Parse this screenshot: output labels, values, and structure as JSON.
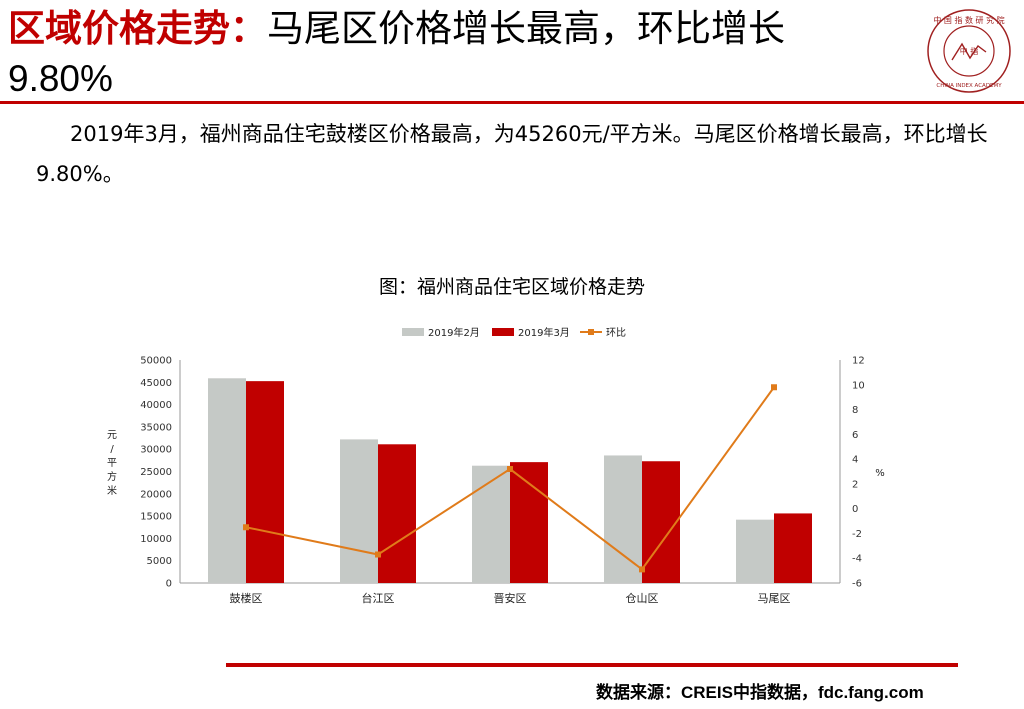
{
  "header": {
    "title_bold": "区域价格走势：",
    "title_rest": "马尾区价格增长最高，环比增长",
    "title_value": "9.80%"
  },
  "logo": {
    "icon": "china-index-academy-seal",
    "text_cn": "中 国 指 数 研 究 院",
    "text_en": "CHINA INDEX ACADEMY",
    "center": "中 指"
  },
  "summary": {
    "text": "2019年3月，福州商品住宅鼓楼区价格最高，为45260元/平方米。马尾区价格增长最高，环比增长9.80%。"
  },
  "chart_title": "图：福州商品住宅区域价格走势",
  "chart_data": {
    "type": "bar",
    "categories": [
      "鼓楼区",
      "台江区",
      "晋安区",
      "仓山区",
      "马尾区"
    ],
    "series": [
      {
        "name": "2019年2月",
        "type": "bar",
        "color": "#c5c9c6",
        "values": [
          45900,
          32200,
          26300,
          28600,
          14200
        ]
      },
      {
        "name": "2019年3月",
        "type": "bar",
        "color": "#c00000",
        "values": [
          45260,
          31100,
          27100,
          27300,
          15600
        ]
      },
      {
        "name": "环比",
        "type": "line",
        "axis": "right",
        "color": "#e07b1a",
        "values": [
          -1.5,
          -3.7,
          3.2,
          -4.9,
          9.8
        ]
      }
    ],
    "ylabel": "元/平方米",
    "ylim": [
      0,
      50000
    ],
    "yticks": [
      0,
      5000,
      10000,
      15000,
      20000,
      25000,
      30000,
      35000,
      40000,
      45000,
      50000
    ],
    "y2label": "%",
    "y2lim": [
      -6,
      12
    ],
    "y2ticks": [
      -6,
      -4,
      -2,
      0,
      2,
      4,
      6,
      8,
      10,
      12
    ],
    "legend_position": "top",
    "grid": false
  },
  "footer": {
    "source": "数据来源：CREIS中指数据，fdc.fang.com"
  }
}
